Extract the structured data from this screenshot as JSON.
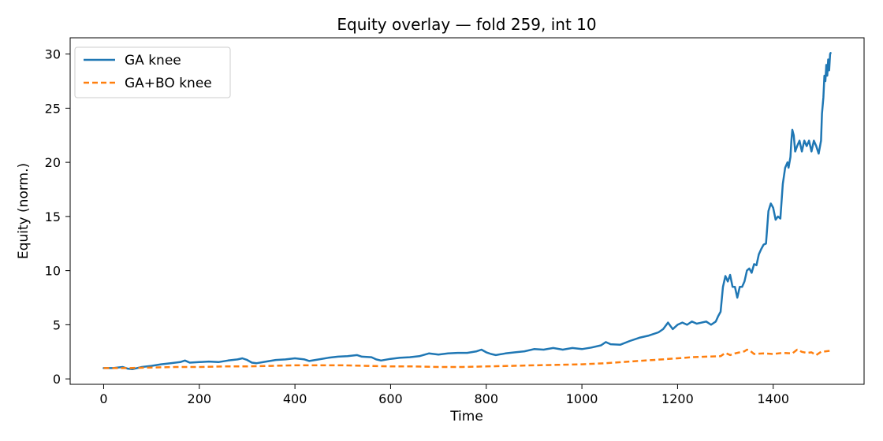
{
  "chart_data": {
    "type": "line",
    "title": "Equity overlay — fold 259, int 10",
    "xlabel": "Time",
    "ylabel": "Equity (norm.)",
    "xlim": [
      -70,
      1590
    ],
    "ylim": [
      -0.5,
      31.5
    ],
    "xticks": [
      0,
      200,
      400,
      600,
      800,
      1000,
      1200,
      1400
    ],
    "yticks": [
      0,
      5,
      10,
      15,
      20,
      25,
      30
    ],
    "grid": false,
    "legend_position": "top-left",
    "series": [
      {
        "name": "GA knee",
        "color": "#1f77b4",
        "style": "solid",
        "points": [
          [
            0,
            1.0
          ],
          [
            20,
            1.0
          ],
          [
            40,
            1.1
          ],
          [
            50,
            0.95
          ],
          [
            60,
            0.9
          ],
          [
            80,
            1.1
          ],
          [
            100,
            1.2
          ],
          [
            120,
            1.35
          ],
          [
            140,
            1.45
          ],
          [
            160,
            1.55
          ],
          [
            170,
            1.7
          ],
          [
            180,
            1.5
          ],
          [
            200,
            1.55
          ],
          [
            220,
            1.6
          ],
          [
            240,
            1.55
          ],
          [
            260,
            1.7
          ],
          [
            280,
            1.8
          ],
          [
            290,
            1.9
          ],
          [
            300,
            1.75
          ],
          [
            310,
            1.5
          ],
          [
            320,
            1.45
          ],
          [
            340,
            1.6
          ],
          [
            360,
            1.75
          ],
          [
            380,
            1.8
          ],
          [
            400,
            1.9
          ],
          [
            420,
            1.8
          ],
          [
            430,
            1.65
          ],
          [
            450,
            1.8
          ],
          [
            470,
            1.95
          ],
          [
            490,
            2.05
          ],
          [
            510,
            2.1
          ],
          [
            530,
            2.2
          ],
          [
            540,
            2.05
          ],
          [
            560,
            2.0
          ],
          [
            570,
            1.8
          ],
          [
            580,
            1.7
          ],
          [
            600,
            1.85
          ],
          [
            620,
            1.95
          ],
          [
            640,
            2.0
          ],
          [
            660,
            2.1
          ],
          [
            680,
            2.35
          ],
          [
            700,
            2.25
          ],
          [
            720,
            2.35
          ],
          [
            740,
            2.4
          ],
          [
            760,
            2.4
          ],
          [
            780,
            2.55
          ],
          [
            790,
            2.7
          ],
          [
            800,
            2.45
          ],
          [
            810,
            2.3
          ],
          [
            820,
            2.2
          ],
          [
            840,
            2.35
          ],
          [
            860,
            2.45
          ],
          [
            880,
            2.55
          ],
          [
            900,
            2.75
          ],
          [
            920,
            2.7
          ],
          [
            940,
            2.85
          ],
          [
            960,
            2.7
          ],
          [
            980,
            2.85
          ],
          [
            1000,
            2.75
          ],
          [
            1020,
            2.9
          ],
          [
            1040,
            3.1
          ],
          [
            1050,
            3.4
          ],
          [
            1060,
            3.2
          ],
          [
            1080,
            3.15
          ],
          [
            1100,
            3.5
          ],
          [
            1120,
            3.8
          ],
          [
            1140,
            4.0
          ],
          [
            1160,
            4.3
          ],
          [
            1170,
            4.6
          ],
          [
            1180,
            5.2
          ],
          [
            1185,
            4.9
          ],
          [
            1190,
            4.6
          ],
          [
            1200,
            5.0
          ],
          [
            1210,
            5.2
          ],
          [
            1220,
            5.0
          ],
          [
            1230,
            5.3
          ],
          [
            1240,
            5.1
          ],
          [
            1260,
            5.3
          ],
          [
            1270,
            5.0
          ],
          [
            1280,
            5.3
          ],
          [
            1285,
            5.8
          ],
          [
            1290,
            6.2
          ],
          [
            1295,
            8.5
          ],
          [
            1300,
            9.5
          ],
          [
            1305,
            9.0
          ],
          [
            1310,
            9.6
          ],
          [
            1315,
            8.5
          ],
          [
            1320,
            8.5
          ],
          [
            1325,
            7.5
          ],
          [
            1330,
            8.5
          ],
          [
            1335,
            8.5
          ],
          [
            1340,
            9.0
          ],
          [
            1345,
            10.0
          ],
          [
            1350,
            10.2
          ],
          [
            1355,
            9.8
          ],
          [
            1360,
            10.6
          ],
          [
            1365,
            10.5
          ],
          [
            1370,
            11.5
          ],
          [
            1375,
            12.0
          ],
          [
            1380,
            12.4
          ],
          [
            1385,
            12.5
          ],
          [
            1390,
            15.5
          ],
          [
            1395,
            16.2
          ],
          [
            1400,
            15.8
          ],
          [
            1405,
            14.7
          ],
          [
            1410,
            15.0
          ],
          [
            1415,
            14.8
          ],
          [
            1420,
            18.0
          ],
          [
            1425,
            19.5
          ],
          [
            1430,
            20.0
          ],
          [
            1432,
            19.5
          ],
          [
            1436,
            20.5
          ],
          [
            1438,
            22.0
          ],
          [
            1440,
            23.0
          ],
          [
            1443,
            22.5
          ],
          [
            1446,
            21.0
          ],
          [
            1450,
            21.5
          ],
          [
            1455,
            22.0
          ],
          [
            1460,
            21.0
          ],
          [
            1465,
            22.0
          ],
          [
            1470,
            21.5
          ],
          [
            1475,
            22.0
          ],
          [
            1480,
            21.0
          ],
          [
            1485,
            22.0
          ],
          [
            1490,
            21.5
          ],
          [
            1495,
            20.8
          ],
          [
            1500,
            22.0
          ],
          [
            1502,
            24.5
          ],
          [
            1505,
            26.0
          ],
          [
            1507,
            28.0
          ],
          [
            1509,
            27.5
          ],
          [
            1511,
            29.0
          ],
          [
            1513,
            28.0
          ],
          [
            1515,
            29.5
          ],
          [
            1517,
            28.5
          ],
          [
            1519,
            30.0
          ],
          [
            1520,
            30.1
          ]
        ]
      },
      {
        "name": "GA+BO knee",
        "color": "#ff7f0e",
        "style": "dashed",
        "points": [
          [
            0,
            1.0
          ],
          [
            50,
            1.0
          ],
          [
            100,
            1.05
          ],
          [
            150,
            1.1
          ],
          [
            200,
            1.1
          ],
          [
            250,
            1.15
          ],
          [
            300,
            1.15
          ],
          [
            350,
            1.2
          ],
          [
            400,
            1.25
          ],
          [
            450,
            1.25
          ],
          [
            500,
            1.25
          ],
          [
            550,
            1.2
          ],
          [
            600,
            1.15
          ],
          [
            650,
            1.15
          ],
          [
            700,
            1.1
          ],
          [
            750,
            1.1
          ],
          [
            800,
            1.15
          ],
          [
            850,
            1.2
          ],
          [
            900,
            1.25
          ],
          [
            950,
            1.3
          ],
          [
            1000,
            1.35
          ],
          [
            1050,
            1.45
          ],
          [
            1100,
            1.6
          ],
          [
            1150,
            1.75
          ],
          [
            1200,
            1.9
          ],
          [
            1230,
            2.0
          ],
          [
            1260,
            2.05
          ],
          [
            1290,
            2.1
          ],
          [
            1300,
            2.4
          ],
          [
            1310,
            2.2
          ],
          [
            1320,
            2.35
          ],
          [
            1330,
            2.45
          ],
          [
            1340,
            2.55
          ],
          [
            1345,
            2.7
          ],
          [
            1350,
            2.65
          ],
          [
            1360,
            2.3
          ],
          [
            1380,
            2.35
          ],
          [
            1400,
            2.3
          ],
          [
            1420,
            2.4
          ],
          [
            1440,
            2.35
          ],
          [
            1450,
            2.7
          ],
          [
            1460,
            2.5
          ],
          [
            1470,
            2.4
          ],
          [
            1480,
            2.45
          ],
          [
            1490,
            2.2
          ],
          [
            1500,
            2.5
          ],
          [
            1510,
            2.55
          ],
          [
            1520,
            2.6
          ]
        ]
      }
    ]
  }
}
